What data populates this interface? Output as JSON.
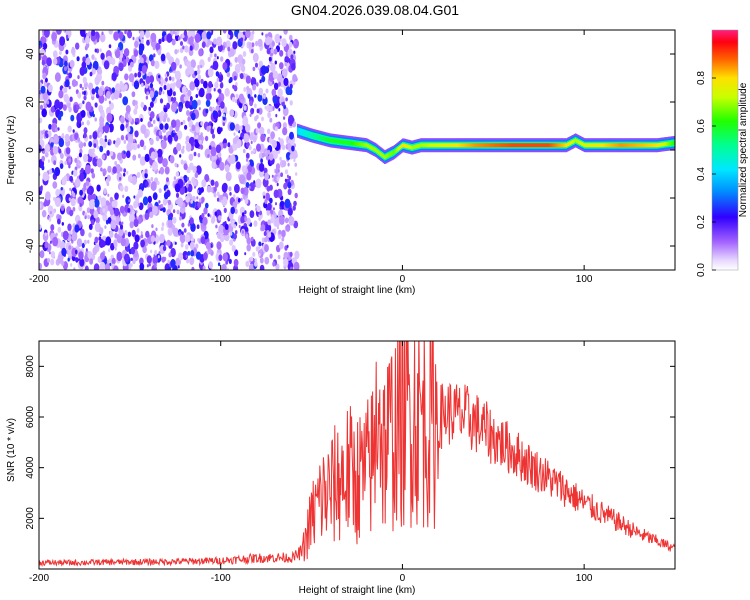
{
  "title": "GN04.2026.039.08.04.G01",
  "colors": {
    "snr_line": "#ee3333",
    "noise": "#7a2cf0",
    "axis": "#000000"
  },
  "chart_data": [
    {
      "type": "heatmap",
      "xlabel": "Height of straight line (km)",
      "ylabel": "Frequency (Hz)",
      "xlim": [
        -200,
        150
      ],
      "ylim": [
        -50,
        50
      ],
      "x_ticks": [
        -200,
        -100,
        0,
        100
      ],
      "x_tick_labels": [
        "-200",
        "-100",
        "0",
        "100"
      ],
      "y_ticks": [
        -40,
        -20,
        0,
        20,
        40
      ],
      "y_tick_labels": [
        "-40",
        "-20",
        "0",
        "20",
        "40"
      ],
      "colorbar": {
        "label": "Normalized spectral amplitude",
        "range": [
          0,
          1
        ],
        "ticks": [
          0,
          0.2,
          0.4,
          0.6,
          0.8
        ],
        "tick_labels": [
          "0.0",
          "0.2",
          "0.4",
          "0.6",
          "0.8"
        ]
      },
      "noise_region_x": [
        -200,
        -58
      ],
      "signal_track": {
        "x": [
          -58,
          -50,
          -40,
          -30,
          -20,
          -15,
          -10,
          -5,
          0,
          5,
          10,
          20,
          40,
          60,
          80,
          90,
          95,
          100,
          120,
          140,
          150
        ],
        "freq": [
          8,
          6,
          4,
          3,
          2,
          0,
          -3,
          -1,
          2,
          1,
          2,
          2,
          2,
          2,
          2,
          2,
          4,
          2,
          2,
          2,
          3
        ],
        "amplitude": [
          0.4,
          0.5,
          0.6,
          0.6,
          0.7,
          0.7,
          0.7,
          0.65,
          0.8,
          0.7,
          0.7,
          0.75,
          0.85,
          0.9,
          0.9,
          0.8,
          0.7,
          0.75,
          0.85,
          0.8,
          0.6
        ]
      }
    },
    {
      "type": "line",
      "xlabel": "Height of straight line (km)",
      "ylabel": "SNR (10 * v/v)",
      "xlim": [
        -200,
        150
      ],
      "ylim": [
        0,
        9000
      ],
      "x_ticks": [
        -200,
        -100,
        0,
        100
      ],
      "x_tick_labels": [
        "-200",
        "-100",
        "0",
        "100"
      ],
      "y_ticks": [
        2000,
        4000,
        6000,
        8000
      ],
      "y_tick_labels": [
        "2000",
        "4000",
        "6000",
        "8000"
      ],
      "series": [
        {
          "x": [
            -200,
            -180,
            -160,
            -140,
            -120,
            -100,
            -90,
            -80,
            -70,
            -60,
            -55,
            -50,
            -45,
            -40,
            -35,
            -30,
            -25,
            -20,
            -15,
            -13,
            -12,
            -10,
            -5,
            0,
            5,
            10,
            15,
            20,
            25,
            30,
            35,
            40,
            50,
            60,
            70,
            80,
            90,
            100,
            110,
            120,
            130,
            140,
            150
          ],
          "y": [
            250,
            250,
            270,
            280,
            300,
            330,
            380,
            430,
            450,
            450,
            700,
            2000,
            2800,
            3000,
            3500,
            3800,
            3600,
            3800,
            4500,
            8900,
            5000,
            4800,
            5500,
            6000,
            6300,
            6000,
            5800,
            6000,
            6200,
            6100,
            6000,
            5800,
            5200,
            4700,
            4100,
            3600,
            3100,
            2600,
            2200,
            1800,
            1400,
            1100,
            800
          ]
        }
      ]
    }
  ]
}
